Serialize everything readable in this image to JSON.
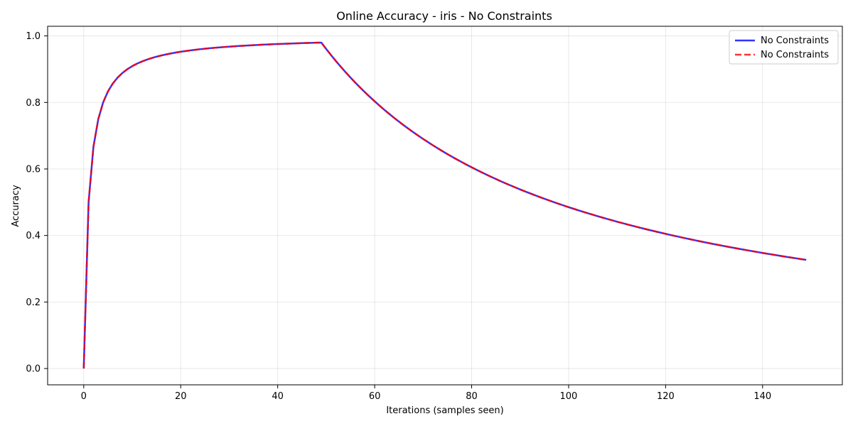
{
  "chart_data": {
    "type": "line",
    "title": "Online Accuracy - iris - No Constraints",
    "xlabel": "Iterations (samples seen)",
    "ylabel": "Accuracy",
    "xlim": [
      -7.45,
      156.45
    ],
    "ylim": [
      -0.049,
      1.029
    ],
    "xticks": [
      0,
      20,
      40,
      60,
      80,
      100,
      120,
      140
    ],
    "xtick_labels": [
      "0",
      "20",
      "40",
      "60",
      "80",
      "100",
      "120",
      "140"
    ],
    "yticks": [
      0.0,
      0.2,
      0.4,
      0.6,
      0.8,
      1.0
    ],
    "ytick_labels": [
      "0.0",
      "0.2",
      "0.4",
      "0.6",
      "0.8",
      "1.0"
    ],
    "grid": true,
    "legend_position": "top-right",
    "x": [
      0,
      1,
      2,
      3,
      4,
      5,
      6,
      7,
      8,
      9,
      10,
      11,
      12,
      13,
      14,
      15,
      16,
      17,
      18,
      19,
      20,
      21,
      22,
      23,
      24,
      25,
      26,
      27,
      28,
      29,
      30,
      31,
      32,
      33,
      34,
      35,
      36,
      37,
      38,
      39,
      40,
      41,
      42,
      43,
      44,
      45,
      46,
      47,
      48,
      49,
      50,
      51,
      52,
      53,
      54,
      55,
      56,
      57,
      58,
      59,
      60,
      61,
      62,
      63,
      64,
      65,
      66,
      67,
      68,
      69,
      70,
      71,
      72,
      73,
      74,
      75,
      76,
      77,
      78,
      79,
      80,
      81,
      82,
      83,
      84,
      85,
      86,
      87,
      88,
      89,
      90,
      91,
      92,
      93,
      94,
      95,
      96,
      97,
      98,
      99,
      100,
      101,
      102,
      103,
      104,
      105,
      106,
      107,
      108,
      109,
      110,
      111,
      112,
      113,
      114,
      115,
      116,
      117,
      118,
      119,
      120,
      121,
      122,
      123,
      124,
      125,
      126,
      127,
      128,
      129,
      130,
      131,
      132,
      133,
      134,
      135,
      136,
      137,
      138,
      139,
      140,
      141,
      142,
      143,
      144,
      145,
      146,
      147,
      148,
      149
    ],
    "series": [
      {
        "name": "No Constraints",
        "color": "#0000ff",
        "style": "solid",
        "values": [
          0.0,
          0.5,
          0.6667,
          0.75,
          0.8,
          0.8333,
          0.8571,
          0.875,
          0.8889,
          0.9,
          0.9091,
          0.9167,
          0.9231,
          0.9286,
          0.9333,
          0.9375,
          0.9412,
          0.9444,
          0.9474,
          0.95,
          0.9524,
          0.9545,
          0.9565,
          0.9583,
          0.96,
          0.9615,
          0.963,
          0.9643,
          0.9655,
          0.9667,
          0.9677,
          0.9688,
          0.9697,
          0.9706,
          0.9714,
          0.9722,
          0.973,
          0.9737,
          0.9744,
          0.975,
          0.9756,
          0.9762,
          0.9767,
          0.9773,
          0.9778,
          0.9783,
          0.9787,
          0.9792,
          0.9796,
          0.98,
          0.9608,
          0.9423,
          0.9245,
          0.9074,
          0.8909,
          0.875,
          0.8596,
          0.8448,
          0.8305,
          0.8167,
          0.8033,
          0.7903,
          0.7778,
          0.7656,
          0.7538,
          0.7424,
          0.7313,
          0.7206,
          0.7101,
          0.7,
          0.6901,
          0.6806,
          0.6712,
          0.6622,
          0.6533,
          0.6447,
          0.6364,
          0.6282,
          0.6203,
          0.6125,
          0.6049,
          0.5976,
          0.5904,
          0.5833,
          0.5765,
          0.5698,
          0.5632,
          0.5568,
          0.5506,
          0.5444,
          0.5385,
          0.5326,
          0.5269,
          0.5213,
          0.5158,
          0.5104,
          0.5052,
          0.5,
          0.4949,
          0.49,
          0.4851,
          0.4804,
          0.4757,
          0.4712,
          0.4667,
          0.4623,
          0.4579,
          0.4537,
          0.4495,
          0.4455,
          0.4414,
          0.4375,
          0.4336,
          0.4298,
          0.4261,
          0.4224,
          0.4188,
          0.4153,
          0.4118,
          0.4083,
          0.405,
          0.4016,
          0.3984,
          0.3952,
          0.392,
          0.3889,
          0.3858,
          0.3828,
          0.3798,
          0.3769,
          0.374,
          0.3712,
          0.3684,
          0.3657,
          0.363,
          0.3603,
          0.3577,
          0.3551,
          0.3525,
          0.35,
          0.3475,
          0.3451,
          0.3427,
          0.3403,
          0.3379,
          0.3356,
          0.3333,
          0.3311,
          0.3289,
          0.3267
        ]
      },
      {
        "name": "No Constraints",
        "color": "#ff0000",
        "style": "dashed",
        "values": [
          0.0,
          0.5,
          0.6667,
          0.75,
          0.8,
          0.8333,
          0.8571,
          0.875,
          0.8889,
          0.9,
          0.9091,
          0.9167,
          0.9231,
          0.9286,
          0.9333,
          0.9375,
          0.9412,
          0.9444,
          0.9474,
          0.95,
          0.9524,
          0.9545,
          0.9565,
          0.9583,
          0.96,
          0.9615,
          0.963,
          0.9643,
          0.9655,
          0.9667,
          0.9677,
          0.9688,
          0.9697,
          0.9706,
          0.9714,
          0.9722,
          0.973,
          0.9737,
          0.9744,
          0.975,
          0.9756,
          0.9762,
          0.9767,
          0.9773,
          0.9778,
          0.9783,
          0.9787,
          0.9792,
          0.9796,
          0.98,
          0.9608,
          0.9423,
          0.9245,
          0.9074,
          0.8909,
          0.875,
          0.8596,
          0.8448,
          0.8305,
          0.8167,
          0.8033,
          0.7903,
          0.7778,
          0.7656,
          0.7538,
          0.7424,
          0.7313,
          0.7206,
          0.7101,
          0.7,
          0.6901,
          0.6806,
          0.6712,
          0.6622,
          0.6533,
          0.6447,
          0.6364,
          0.6282,
          0.6203,
          0.6125,
          0.6049,
          0.5976,
          0.5904,
          0.5833,
          0.5765,
          0.5698,
          0.5632,
          0.5568,
          0.5506,
          0.5444,
          0.5385,
          0.5326,
          0.5269,
          0.5213,
          0.5158,
          0.5104,
          0.5052,
          0.5,
          0.4949,
          0.49,
          0.4851,
          0.4804,
          0.4757,
          0.4712,
          0.4667,
          0.4623,
          0.4579,
          0.4537,
          0.4495,
          0.4455,
          0.4414,
          0.4375,
          0.4336,
          0.4298,
          0.4261,
          0.4224,
          0.4188,
          0.4153,
          0.4118,
          0.4083,
          0.405,
          0.4016,
          0.3984,
          0.3952,
          0.392,
          0.3889,
          0.3858,
          0.3828,
          0.3798,
          0.3769,
          0.374,
          0.3712,
          0.3684,
          0.3657,
          0.363,
          0.3603,
          0.3577,
          0.3551,
          0.3525,
          0.35,
          0.3475,
          0.3451,
          0.3427,
          0.3403,
          0.3379,
          0.3356,
          0.3333,
          0.3311,
          0.3289,
          0.3267
        ]
      }
    ]
  }
}
